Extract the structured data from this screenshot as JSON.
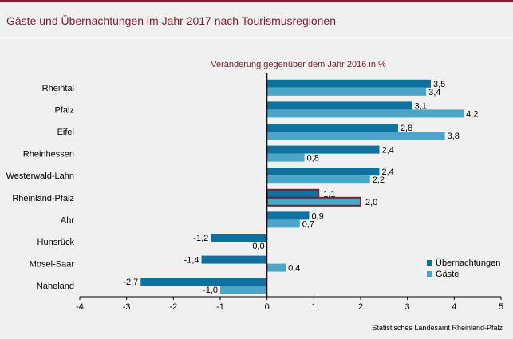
{
  "title": "Gäste und Übernachtungen im Jahr 2017 nach Tourismusregionen",
  "chart_data": {
    "type": "bar",
    "orientation": "horizontal",
    "subtitle": "Veränderung gegenüber dem Jahr 2016 in %",
    "categories": [
      "Rheintal",
      "Pfalz",
      "Eifel",
      "Rheinhessen",
      "Westerwald-Lahn",
      "Rheinland-Pfalz",
      "Ahr",
      "Hunsrück",
      "Mosel-Saar",
      "Naheland"
    ],
    "series": [
      {
        "name": "Übernachtungen",
        "color": "#0e72a0",
        "values": [
          3.5,
          3.1,
          2.8,
          2.4,
          2.4,
          1.1,
          0.9,
          -1.2,
          -1.4,
          -2.7
        ],
        "labels": [
          "3,5",
          "3,1",
          "2,8",
          "2,4",
          "2,4",
          "1,1",
          "0,9",
          "-1,2",
          "-1,4",
          "-2,7"
        ]
      },
      {
        "name": "Gäste",
        "color": "#4aa5c8",
        "values": [
          3.4,
          4.2,
          3.8,
          0.8,
          2.2,
          2.0,
          0.7,
          0.0,
          0.4,
          -1.0
        ],
        "labels": [
          "3,4",
          "4,2",
          "3,8",
          "0,8",
          "2,2",
          "2,0",
          "0,7",
          "0,0",
          "0,4",
          "-1,0"
        ]
      }
    ],
    "highlight_category": "Rheinland-Pfalz",
    "highlight_color": "#7a1f2b",
    "xlim": [
      -4,
      5
    ],
    "xticks": [
      "-4",
      "-3",
      "-2",
      "-1",
      "0",
      "1",
      "2",
      "3",
      "4",
      "5"
    ],
    "legend_position": "bottom-right",
    "grid": false
  },
  "source": "Statistisches Landesamt Rheinland-Pfalz"
}
